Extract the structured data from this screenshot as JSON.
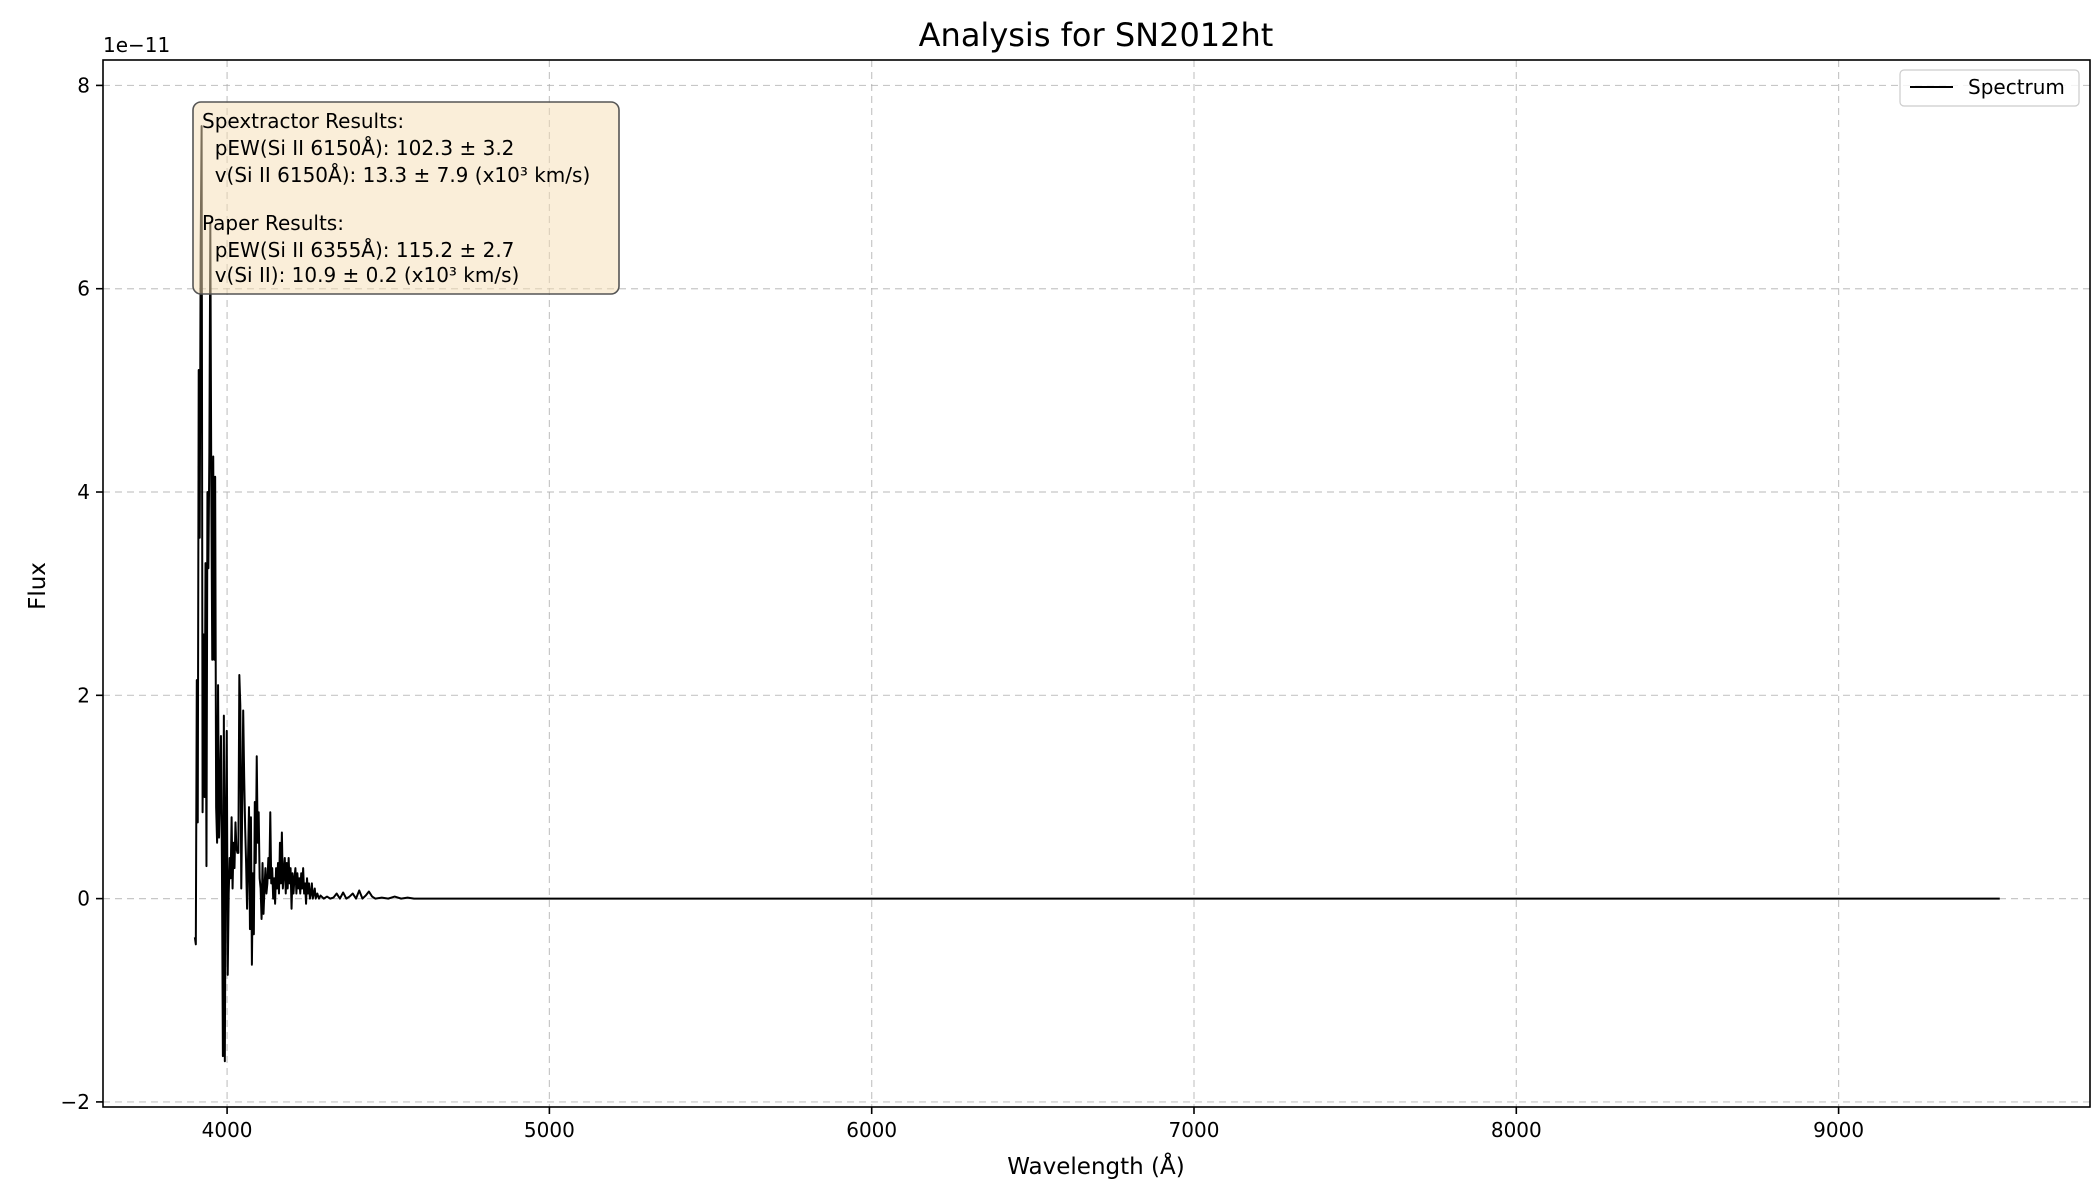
{
  "chart_data": {
    "type": "line",
    "title": "Analysis for SN2012ht",
    "xlabel": "Wavelength (Å)",
    "ylabel": "Flux",
    "y_offset_label": "1e−11",
    "xlim": [
      3615,
      9780
    ],
    "ylim": [
      -2.05,
      8.25
    ],
    "x_ticks": [
      4000,
      5000,
      6000,
      7000,
      8000,
      9000
    ],
    "x_tick_labels": [
      "4000",
      "5000",
      "6000",
      "7000",
      "8000",
      "9000"
    ],
    "y_ticks": [
      -2,
      0,
      2,
      4,
      6,
      8
    ],
    "y_tick_labels": [
      "−2",
      "0",
      "2",
      "4",
      "6",
      "8"
    ],
    "grid": true,
    "legend_position": "top-right",
    "series": [
      {
        "name": "Spectrum",
        "color": "#000000",
        "points": [
          [
            3900,
            -0.38
          ],
          [
            3903,
            -0.45
          ],
          [
            3906,
            2.15
          ],
          [
            3909,
            0.75
          ],
          [
            3912,
            5.2
          ],
          [
            3915,
            3.55
          ],
          [
            3918,
            6.4
          ],
          [
            3921,
            7.6
          ],
          [
            3924,
            0.85
          ],
          [
            3927,
            2.6
          ],
          [
            3930,
            1.0
          ],
          [
            3933,
            3.3
          ],
          [
            3936,
            0.32
          ],
          [
            3939,
            4.0
          ],
          [
            3942,
            3.25
          ],
          [
            3945,
            4.4
          ],
          [
            3948,
            6.65
          ],
          [
            3951,
            4.05
          ],
          [
            3954,
            2.35
          ],
          [
            3957,
            4.35
          ],
          [
            3960,
            2.35
          ],
          [
            3963,
            4.15
          ],
          [
            3966,
            0.9
          ],
          [
            3969,
            0.55
          ],
          [
            3972,
            2.1
          ],
          [
            3975,
            0.6
          ],
          [
            3978,
            1.05
          ],
          [
            3981,
            1.6
          ],
          [
            3984,
            0.35
          ],
          [
            3987,
            -1.55
          ],
          [
            3990,
            1.8
          ],
          [
            3993,
            -1.6
          ],
          [
            3996,
            0.7
          ],
          [
            3999,
            1.65
          ],
          [
            4002,
            -0.75
          ],
          [
            4005,
            0.05
          ],
          [
            4008,
            0.4
          ],
          [
            4011,
            0.2
          ],
          [
            4014,
            0.8
          ],
          [
            4017,
            0.1
          ],
          [
            4020,
            0.55
          ],
          [
            4023,
            0.3
          ],
          [
            4026,
            0.75
          ],
          [
            4029,
            0.5
          ],
          [
            4032,
            0.45
          ],
          [
            4035,
            0.45
          ],
          [
            4038,
            2.2
          ],
          [
            4041,
            1.9
          ],
          [
            4044,
            0.1
          ],
          [
            4047,
            0.9
          ],
          [
            4050,
            1.85
          ],
          [
            4053,
            1.2
          ],
          [
            4056,
            0.7
          ],
          [
            4059,
            0.35
          ],
          [
            4062,
            -0.1
          ],
          [
            4065,
            0.4
          ],
          [
            4068,
            0.9
          ],
          [
            4071,
            -0.3
          ],
          [
            4074,
            0.8
          ],
          [
            4077,
            -0.65
          ],
          [
            4080,
            0.25
          ],
          [
            4083,
            -0.35
          ],
          [
            4086,
            0.95
          ],
          [
            4089,
            0.35
          ],
          [
            4092,
            1.4
          ],
          [
            4095,
            0.55
          ],
          [
            4098,
            0.85
          ],
          [
            4101,
            0.2
          ],
          [
            4104,
            0.1
          ],
          [
            4107,
            -0.2
          ],
          [
            4110,
            0.35
          ],
          [
            4113,
            -0.15
          ],
          [
            4116,
            0.1
          ],
          [
            4119,
            0.3
          ],
          [
            4122,
            0.05
          ],
          [
            4125,
            0.15
          ],
          [
            4128,
            0.4
          ],
          [
            4131,
            0.2
          ],
          [
            4134,
            0.85
          ],
          [
            4137,
            0.15
          ],
          [
            4140,
            0.3
          ],
          [
            4143,
            0.0
          ],
          [
            4146,
            0.2
          ],
          [
            4149,
            -0.05
          ],
          [
            4152,
            0.3
          ],
          [
            4155,
            0.1
          ],
          [
            4158,
            0.35
          ],
          [
            4161,
            0.05
          ],
          [
            4164,
            0.55
          ],
          [
            4167,
            0.15
          ],
          [
            4170,
            0.65
          ],
          [
            4173,
            0.1
          ],
          [
            4176,
            0.25
          ],
          [
            4179,
            0.4
          ],
          [
            4182,
            0.05
          ],
          [
            4185,
            0.35
          ],
          [
            4188,
            0.1
          ],
          [
            4191,
            0.4
          ],
          [
            4194,
            0.15
          ],
          [
            4197,
            0.3
          ],
          [
            4200,
            -0.1
          ],
          [
            4203,
            0.25
          ],
          [
            4206,
            0.05
          ],
          [
            4209,
            0.2
          ],
          [
            4212,
            0.3
          ],
          [
            4215,
            0.05
          ],
          [
            4218,
            0.25
          ],
          [
            4221,
            0.1
          ],
          [
            4224,
            0.2
          ],
          [
            4227,
            0.05
          ],
          [
            4230,
            0.25
          ],
          [
            4233,
            0.1
          ],
          [
            4236,
            0.3
          ],
          [
            4239,
            0.05
          ],
          [
            4242,
            0.15
          ],
          [
            4245,
            -0.05
          ],
          [
            4248,
            0.2
          ],
          [
            4251,
            0.05
          ],
          [
            4254,
            0.15
          ],
          [
            4257,
            0.0
          ],
          [
            4260,
            0.05
          ],
          [
            4263,
            0.15
          ],
          [
            4266,
            0.0
          ],
          [
            4269,
            0.05
          ],
          [
            4272,
            0.1
          ],
          [
            4275,
            0.0
          ],
          [
            4280,
            0.05
          ],
          [
            4285,
            0.0
          ],
          [
            4290,
            0.03
          ],
          [
            4300,
            0.0
          ],
          [
            4310,
            0.02
          ],
          [
            4320,
            0.0
          ],
          [
            4330,
            0.01
          ],
          [
            4340,
            0.05
          ],
          [
            4350,
            0.0
          ],
          [
            4360,
            0.06
          ],
          [
            4370,
            0.0
          ],
          [
            4380,
            0.02
          ],
          [
            4390,
            0.05
          ],
          [
            4400,
            0.0
          ],
          [
            4410,
            0.08
          ],
          [
            4420,
            0.0
          ],
          [
            4430,
            0.03
          ],
          [
            4440,
            0.07
          ],
          [
            4450,
            0.02
          ],
          [
            4460,
            0.0
          ],
          [
            4480,
            0.01
          ],
          [
            4500,
            0.0
          ],
          [
            4520,
            0.02
          ],
          [
            4540,
            0.0
          ],
          [
            4560,
            0.01
          ],
          [
            4580,
            0.0
          ],
          [
            4600,
            0.0
          ],
          [
            5000,
            0.0
          ],
          [
            6000,
            0.0
          ],
          [
            7000,
            0.0
          ],
          [
            8000,
            0.0
          ],
          [
            9000,
            0.0
          ],
          [
            9500,
            0.0
          ]
        ]
      }
    ]
  },
  "annotation": {
    "lines": [
      "Spextractor Results:",
      "  pEW(Si II 6150Å): 102.3 ± 3.2",
      "  v(Si II 6150Å): 13.3 ± 7.9 (x10³ km/s)",
      "",
      "Paper Results:",
      "  pEW(Si II 6355Å): 115.2 ± 2.7",
      "  v(Si II): 10.9 ± 0.2 (x10³ km/s)"
    ],
    "background": "#f5deb3"
  },
  "colors": {
    "axes": "#000000",
    "grid": "#b0b0b0",
    "line": "#000000",
    "annotation_box": "#f5deb3"
  }
}
